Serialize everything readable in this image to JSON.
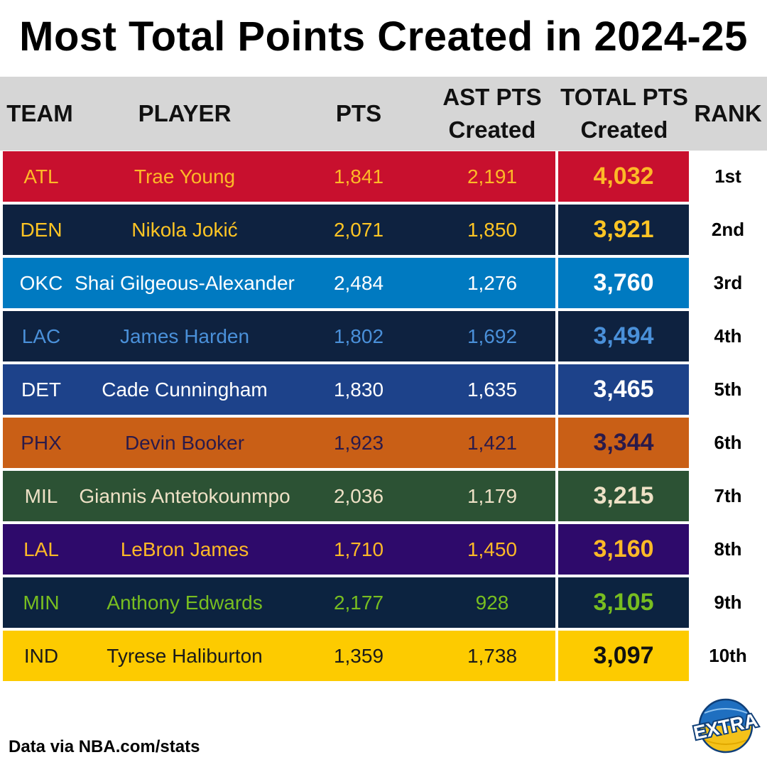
{
  "title": "Most Total Points Created in 2024-25",
  "columns": {
    "team": "TEAM",
    "player": "PLAYER",
    "pts": "PTS",
    "ast_line1": "AST PTS",
    "ast_line2": "Created",
    "total_line1": "TOTAL PTS",
    "total_line2": "Created",
    "rank": "RANK"
  },
  "rows": [
    {
      "team": "ATL",
      "player": "Trae Young",
      "pts": "1,841",
      "ast": "2,191",
      "total": "4,032",
      "rank": "1st",
      "bg": "#c8102e",
      "fg": "#fdb927",
      "totalfg": "#fdb927"
    },
    {
      "team": "DEN",
      "player": "Nikola Jokić",
      "pts": "2,071",
      "ast": "1,850",
      "total": "3,921",
      "rank": "2nd",
      "bg": "#0e2240",
      "fg": "#fec524",
      "totalfg": "#fec524"
    },
    {
      "team": "OKC",
      "player": "Shai Gilgeous-Alexander",
      "pts": "2,484",
      "ast": "1,276",
      "total": "3,760",
      "rank": "3rd",
      "bg": "#007ac1",
      "fg": "#ffffff",
      "totalfg": "#ffffff"
    },
    {
      "team": "LAC",
      "player": "James Harden",
      "pts": "1,802",
      "ast": "1,692",
      "total": "3,494",
      "rank": "4th",
      "bg": "#0e2240",
      "fg": "#4a90d9",
      "totalfg": "#4a90d9"
    },
    {
      "team": "DET",
      "player": "Cade Cunningham",
      "pts": "1,830",
      "ast": "1,635",
      "total": "3,465",
      "rank": "5th",
      "bg": "#1d428a",
      "fg": "#ffffff",
      "totalfg": "#ffffff"
    },
    {
      "team": "PHX",
      "player": "Devin Booker",
      "pts": "1,923",
      "ast": "1,421",
      "total": "3,344",
      "rank": "6th",
      "bg": "#c95f16",
      "fg": "#2b1a4a",
      "totalfg": "#2b1a4a"
    },
    {
      "team": "MIL",
      "player": "Giannis Antetokounmpo",
      "pts": "2,036",
      "ast": "1,179",
      "total": "3,215",
      "rank": "7th",
      "bg": "#2c5234",
      "fg": "#eee1c6",
      "totalfg": "#eee1c6"
    },
    {
      "team": "LAL",
      "player": "LeBron James",
      "pts": "1,710",
      "ast": "1,450",
      "total": "3,160",
      "rank": "8th",
      "bg": "#2e0a6b",
      "fg": "#fdb927",
      "totalfg": "#fdb927"
    },
    {
      "team": "MIN",
      "player": "Anthony Edwards",
      "pts": "2,177",
      "ast": "928",
      "total": "3,105",
      "rank": "9th",
      "bg": "#0c2340",
      "fg": "#78be20",
      "totalfg": "#78be20"
    },
    {
      "team": "IND",
      "player": "Tyrese Haliburton",
      "pts": "1,359",
      "ast": "1,738",
      "total": "3,097",
      "rank": "10th",
      "bg": "#fdcb00",
      "fg": "#1a1a1a",
      "totalfg": "#111111"
    }
  ],
  "footer": "Data via NBA.com/stats",
  "logo_text": "EXTRA",
  "chart_data": {
    "type": "table",
    "title": "Most Total Points Created in 2024-25",
    "columns": [
      "TEAM",
      "PLAYER",
      "PTS",
      "AST PTS Created",
      "TOTAL PTS Created",
      "RANK"
    ],
    "rows": [
      [
        "ATL",
        "Trae Young",
        1841,
        2191,
        4032,
        "1st"
      ],
      [
        "DEN",
        "Nikola Jokić",
        2071,
        1850,
        3921,
        "2nd"
      ],
      [
        "OKC",
        "Shai Gilgeous-Alexander",
        2484,
        1276,
        3760,
        "3rd"
      ],
      [
        "LAC",
        "James Harden",
        1802,
        1692,
        3494,
        "4th"
      ],
      [
        "DET",
        "Cade Cunningham",
        1830,
        1635,
        3465,
        "5th"
      ],
      [
        "PHX",
        "Devin Booker",
        1923,
        1421,
        3344,
        "6th"
      ],
      [
        "MIL",
        "Giannis Antetokounmpo",
        2036,
        1179,
        3215,
        "7th"
      ],
      [
        "LAL",
        "LeBron James",
        1710,
        1450,
        3160,
        "8th"
      ],
      [
        "MIN",
        "Anthony Edwards",
        2177,
        928,
        3105,
        "9th"
      ],
      [
        "IND",
        "Tyrese Haliburton",
        1359,
        1738,
        3097,
        "10th"
      ]
    ]
  }
}
